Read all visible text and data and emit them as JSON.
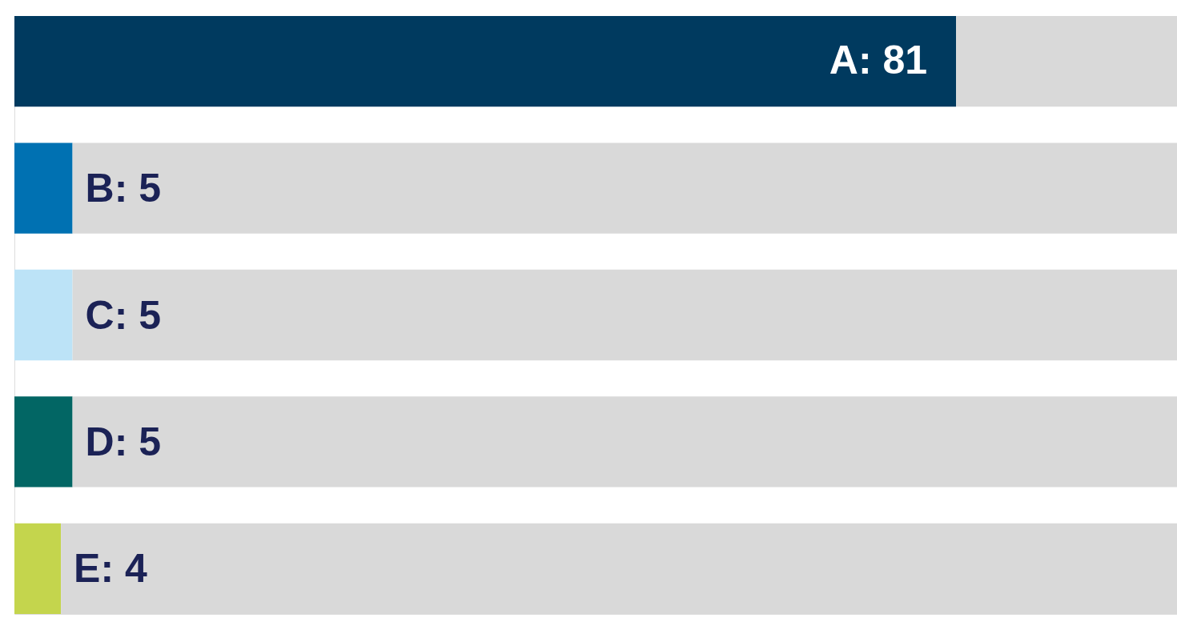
{
  "chart_data": {
    "type": "bar",
    "orientation": "horizontal",
    "stacked": true,
    "categories": [
      null,
      null,
      null,
      null,
      null
    ],
    "series": [
      {
        "colors": [
          "#003a5f",
          "#0071b2",
          "#bce3f7",
          "#026664",
          "#c4d54d"
        ],
        "values": [
          81,
          5,
          5,
          5,
          4
        ],
        "value_labels": [
          "A: 81",
          "B: 5",
          "C: 5",
          "D: 5",
          "E: 4"
        ]
      },
      {
        "color": "#d9d9d9",
        "values": [
          19,
          95,
          95,
          95,
          96
        ],
        "value_labels": [
          null,
          null,
          null,
          null,
          null
        ]
      }
    ],
    "tick_labels": false
  }
}
